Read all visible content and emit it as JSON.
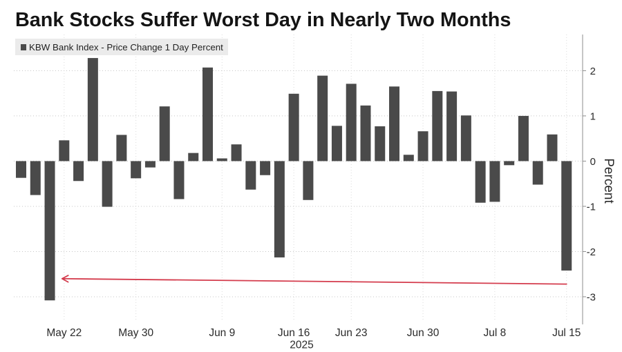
{
  "chart_data": {
    "type": "bar",
    "title": "Bank Stocks Suffer Worst Day in Nearly Two Months",
    "ylabel": "Percent",
    "y_axis_side": "right",
    "ylim": [
      -3.55,
      2.8
    ],
    "y_ticks": [
      2,
      1,
      0,
      -1,
      -2,
      -3
    ],
    "grid": true,
    "legend_placement": "top-left",
    "x_ticks": [
      {
        "label": "May 22",
        "x": "2025-05-22"
      },
      {
        "label": "May 30",
        "x": "2025-05-30"
      },
      {
        "label": "Jun 9",
        "x": "2025-06-09"
      },
      {
        "label": "Jun 16",
        "x": "2025-06-16"
      },
      {
        "label": "Jun 23",
        "x": "2025-06-23"
      },
      {
        "label": "Jun 30",
        "x": "2025-06-30"
      },
      {
        "label": "Jul 8",
        "x": "2025-07-08"
      },
      {
        "label": "Jul 15",
        "x": "2025-07-15"
      }
    ],
    "x_year_label": "2025",
    "series": [
      {
        "name": "KBW Bank Index - Price Change 1 Day Percent",
        "color": "#4a4a4a",
        "points": [
          {
            "x": "2025-05-19",
            "y": -0.37
          },
          {
            "x": "2025-05-20",
            "y": -0.75
          },
          {
            "x": "2025-05-21",
            "y": -3.08
          },
          {
            "x": "2025-05-22",
            "y": 0.46
          },
          {
            "x": "2025-05-23",
            "y": -0.44
          },
          {
            "x": "2025-05-27",
            "y": 2.28
          },
          {
            "x": "2025-05-28",
            "y": -1.01
          },
          {
            "x": "2025-05-29",
            "y": 0.58
          },
          {
            "x": "2025-05-30",
            "y": -0.38
          },
          {
            "x": "2025-06-02",
            "y": -0.14
          },
          {
            "x": "2025-06-03",
            "y": 1.21
          },
          {
            "x": "2025-06-04",
            "y": -0.84
          },
          {
            "x": "2025-06-05",
            "y": 0.18
          },
          {
            "x": "2025-06-06",
            "y": 2.07
          },
          {
            "x": "2025-06-09",
            "y": 0.06
          },
          {
            "x": "2025-06-10",
            "y": 0.37
          },
          {
            "x": "2025-06-11",
            "y": -0.63
          },
          {
            "x": "2025-06-12",
            "y": -0.31
          },
          {
            "x": "2025-06-13",
            "y": -2.13
          },
          {
            "x": "2025-06-16",
            "y": 1.49
          },
          {
            "x": "2025-06-17",
            "y": -0.86
          },
          {
            "x": "2025-06-18",
            "y": 1.89
          },
          {
            "x": "2025-06-20",
            "y": 0.78
          },
          {
            "x": "2025-06-23",
            "y": 1.71
          },
          {
            "x": "2025-06-24",
            "y": 1.23
          },
          {
            "x": "2025-06-25",
            "y": 0.77
          },
          {
            "x": "2025-06-26",
            "y": 1.65
          },
          {
            "x": "2025-06-27",
            "y": 0.14
          },
          {
            "x": "2025-06-30",
            "y": 0.66
          },
          {
            "x": "2025-07-01",
            "y": 1.55
          },
          {
            "x": "2025-07-02",
            "y": 1.54
          },
          {
            "x": "2025-07-03",
            "y": 1.01
          },
          {
            "x": "2025-07-07",
            "y": -0.92
          },
          {
            "x": "2025-07-08",
            "y": -0.9
          },
          {
            "x": "2025-07-09",
            "y": -0.09
          },
          {
            "x": "2025-07-10",
            "y": 1.0
          },
          {
            "x": "2025-07-11",
            "y": -0.52
          },
          {
            "x": "2025-07-14",
            "y": 0.59
          },
          {
            "x": "2025-07-15",
            "y": -2.42
          }
        ]
      }
    ],
    "annotations": [
      {
        "type": "arrow",
        "color": "#d43b4c",
        "from": {
          "x": "2025-07-15",
          "y": -2.72
        },
        "to": {
          "x": "2025-05-22",
          "y": -2.6
        }
      }
    ]
  }
}
